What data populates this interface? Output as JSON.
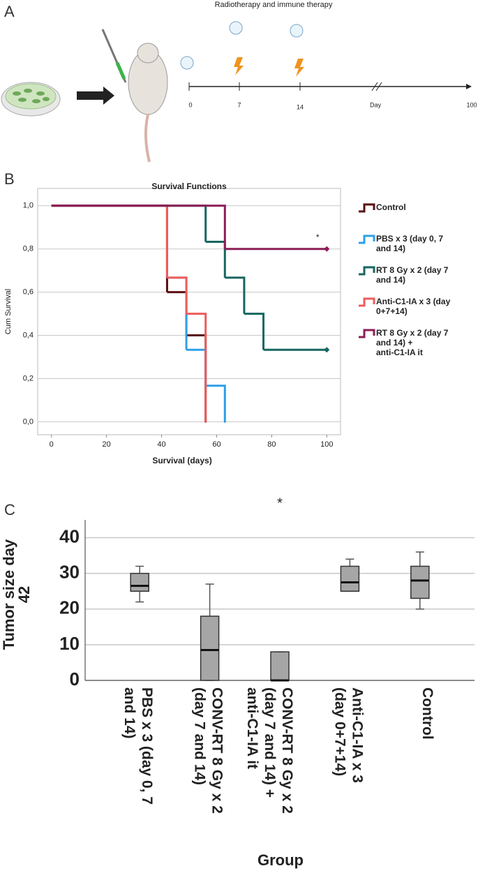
{
  "panel_labels": [
    "A",
    "B",
    "C"
  ],
  "schematic": {
    "title": "Radiotherapy and immune therapy",
    "timeline_labels": [
      "0",
      "7",
      "14",
      "Day",
      "100"
    ]
  },
  "chart_data": [
    {
      "type": "step",
      "title": "Survival Functions",
      "x_label": "Survival (days)",
      "y_label": "Cum Survival",
      "xlim": [
        -5,
        105
      ],
      "ylim": [
        -0.06,
        1.08
      ],
      "xticks": [
        0,
        20,
        40,
        60,
        80,
        100
      ],
      "yticks": [
        {
          "value": 0,
          "label": "0,0"
        },
        {
          "value": 0.2,
          "label": "0,2"
        },
        {
          "value": 0.4,
          "label": "0,4"
        },
        {
          "value": 0.6,
          "label": "0,6"
        },
        {
          "value": 0.8,
          "label": "0,8"
        },
        {
          "value": 1,
          "label": "1,0"
        }
      ],
      "grid": true,
      "annotation": "*",
      "series": [
        {
          "name": "Control",
          "color": "#5a0f12",
          "x": [
            0,
            42,
            49,
            56
          ],
          "values": [
            1,
            0.6,
            0.4,
            0
          ],
          "censored": false
        },
        {
          "name": "PBS x 3 (day 0, 7 and 14)",
          "color": "#2f9fe6",
          "x": [
            0,
            42,
            49,
            56,
            63
          ],
          "values": [
            1,
            0.667,
            0.333,
            0.167,
            0
          ],
          "censored": false
        },
        {
          "name": "RT 8 Gy x 2 (day 7 and 14)",
          "color": "#176660",
          "x": [
            0,
            56,
            63,
            70,
            77,
            100
          ],
          "values": [
            1,
            0.833,
            0.667,
            0.5,
            0.333,
            0.333
          ],
          "censored": true
        },
        {
          "name": "Anti-C1-IA x 3 (day 0+7+14)",
          "color": "#f05b5b",
          "x": [
            0,
            42,
            49,
            56
          ],
          "values": [
            1,
            0.667,
            0.5,
            0
          ],
          "censored": false
        },
        {
          "name": "RT 8 Gy x 2 (day 7 and 14) + anti-C1-IA it",
          "color": "#8c1d56",
          "x": [
            0,
            63,
            100
          ],
          "values": [
            1,
            0.8,
            0.8
          ],
          "censored": true
        }
      ]
    },
    {
      "type": "box",
      "x_label": "Group",
      "y_label": "Tumor size day 42",
      "annotation": "*",
      "ylim": [
        0,
        45
      ],
      "yticks": [
        0,
        10,
        20,
        30,
        40
      ],
      "grid": true,
      "color": "#a6a6a6",
      "categories": [
        "PBS x 3 (day 0, 7 and 14)",
        "CONV-RT 8 Gy x 2 (day 7 and 14)",
        "CONV-RT 8 Gy x 2 (day 7 and 14) + anti-C1-IA it",
        "Anti-C1-IA x 3 (day 0+7+14)",
        "Control"
      ],
      "boxes": [
        {
          "low": 22,
          "q1": 25,
          "median": 26.5,
          "q3": 30,
          "high": 32
        },
        {
          "low": 0,
          "q1": 0,
          "median": 8.5,
          "q3": 18,
          "high": 27
        },
        {
          "low": 0,
          "q1": 0,
          "median": 0,
          "q3": 8,
          "high": 8
        },
        {
          "low": 25,
          "q1": 25,
          "median": 27.5,
          "q3": 32,
          "high": 34
        },
        {
          "low": 20,
          "q1": 23,
          "median": 28,
          "q3": 32,
          "high": 36
        }
      ]
    }
  ]
}
